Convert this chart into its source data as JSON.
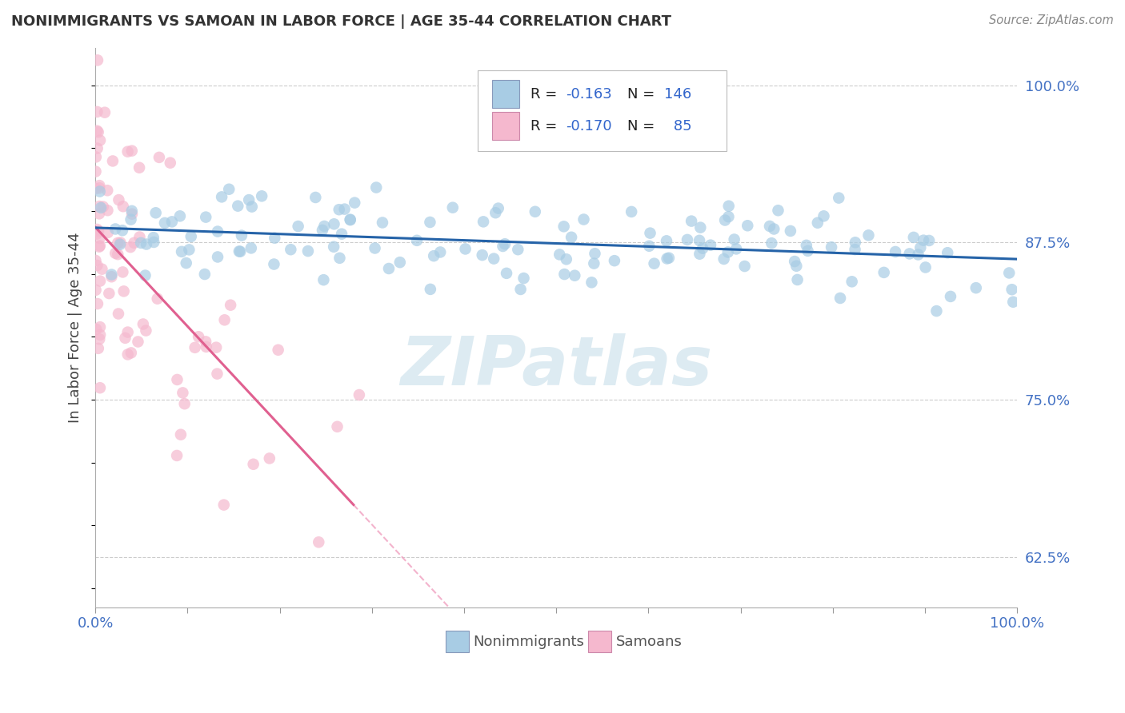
{
  "title": "NONIMMIGRANTS VS SAMOAN IN LABOR FORCE | AGE 35-44 CORRELATION CHART",
  "source": "Source: ZipAtlas.com",
  "ylabel": "In Labor Force | Age 35-44",
  "xlim": [
    0.0,
    1.0
  ],
  "ylim": [
    0.585,
    1.03
  ],
  "yticks": [
    0.625,
    0.75,
    0.875,
    1.0
  ],
  "ytick_labels": [
    "62.5%",
    "75.0%",
    "87.5%",
    "100.0%"
  ],
  "blue_R": -0.163,
  "blue_N": 146,
  "pink_R": -0.17,
  "pink_N": 85,
  "blue_dot_color": "#a8cce4",
  "pink_dot_color": "#f5b8ce",
  "blue_line_color": "#2563a8",
  "pink_line_color": "#e06090",
  "dashed_color": "#f0a0c0",
  "grid_color": "#cccccc",
  "legend_label_blue": "Nonimmigrants",
  "legend_label_pink": "Samoans",
  "watermark": "ZIPatlas",
  "seed": 42,
  "xtick_positions": [
    0.0,
    0.1,
    0.2,
    0.3,
    0.4,
    0.5,
    0.6,
    0.7,
    0.8,
    0.9,
    1.0
  ]
}
